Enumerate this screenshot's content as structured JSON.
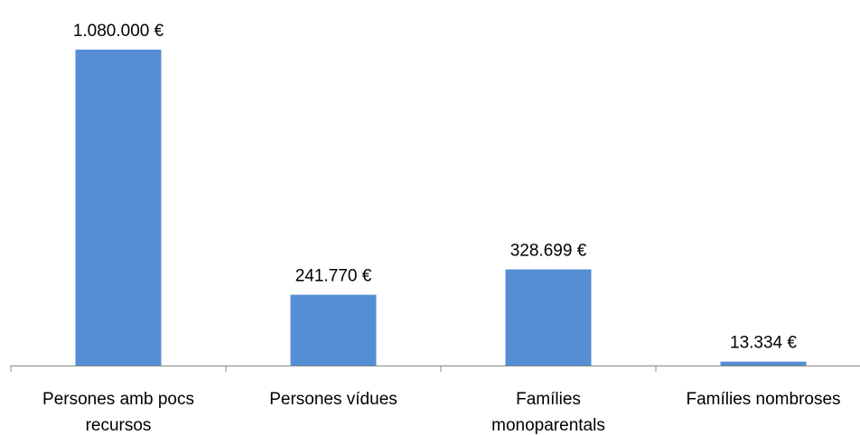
{
  "chart_data": {
    "type": "bar",
    "categories": [
      [
        "Persones amb pocs",
        "recursos"
      ],
      [
        "Persones vídues"
      ],
      [
        "Famílies",
        "monoparentals"
      ],
      [
        "Famílies nombroses"
      ]
    ],
    "values": [
      1080000,
      241770,
      328699,
      13334
    ],
    "data_labels": [
      "1.080.000 €",
      "241.770 €",
      "328.699 €",
      "13.334 €"
    ],
    "bar_color": "#558ED5",
    "axis_color": "#868686",
    "ylim": [
      0,
      1080000
    ],
    "grid": false,
    "legend": "none",
    "title": "",
    "xlabel": "",
    "ylabel": ""
  }
}
